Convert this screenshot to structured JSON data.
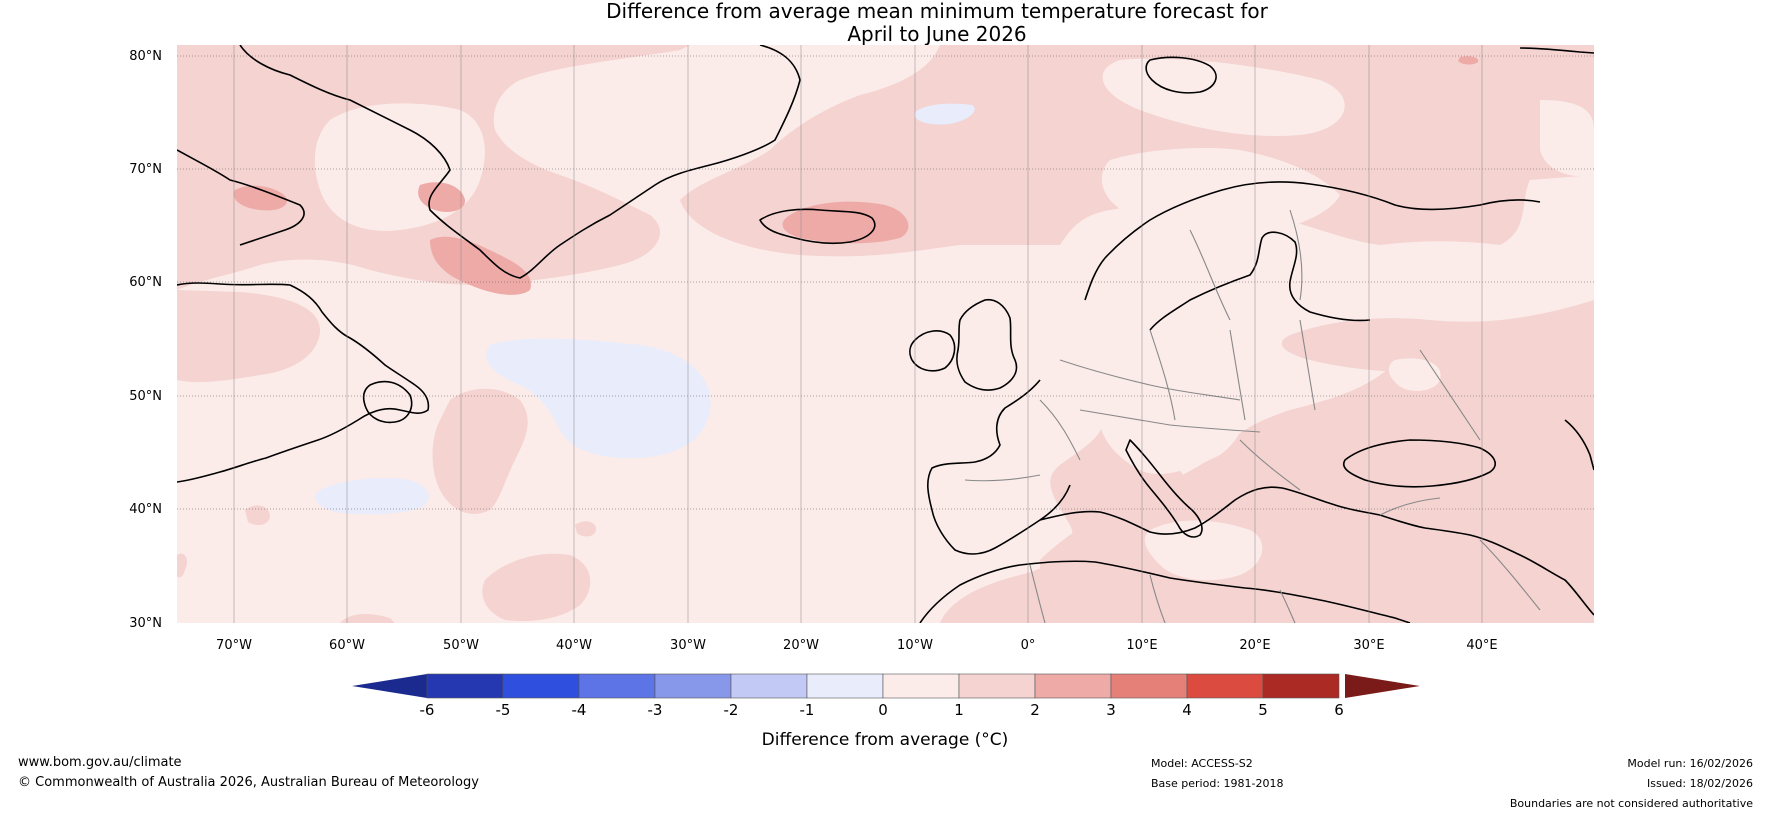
{
  "title": {
    "line1": "Difference from average mean minimum temperature forecast for",
    "line2": "April to June 2026"
  },
  "map": {
    "region": "North Atlantic and Europe",
    "lat_labels": [
      "80°N",
      "70°N",
      "60°N",
      "50°N",
      "40°N",
      "30°N"
    ],
    "lon_labels": [
      "70°W",
      "60°W",
      "50°W",
      "40°W",
      "30°W",
      "20°W",
      "10°W",
      "0°",
      "10°E",
      "20°E",
      "30°E",
      "40°E"
    ]
  },
  "colorbar": {
    "label": "Difference from average (°C)",
    "ticks": [
      "-6",
      "-5",
      "-4",
      "-3",
      "-2",
      "-1",
      "0",
      "1",
      "2",
      "3",
      "4",
      "5",
      "6"
    ],
    "colors": [
      "#1a2a8e",
      "#2538b2",
      "#2f4fde",
      "#5d74e6",
      "#8797ea",
      "#c1c9f4",
      "#e8ecfb",
      "#fbecea",
      "#f4d3d1",
      "#eeaaa7",
      "#e58078",
      "#db4b3f",
      "#ab2a24",
      "#7a1b19"
    ]
  },
  "footer": {
    "website": "www.bom.gov.au/climate",
    "copyright": "© Commonwealth of Australia 2026, Australian Bureau of Meteorology",
    "model": "Model: ACCESS-S2",
    "base_period": "Base period: 1981-2018",
    "model_run": "Model run: 16/02/2026",
    "issued": "Issued: 18/02/2026",
    "disclaimer": "Boundaries are not considered authoritative"
  }
}
